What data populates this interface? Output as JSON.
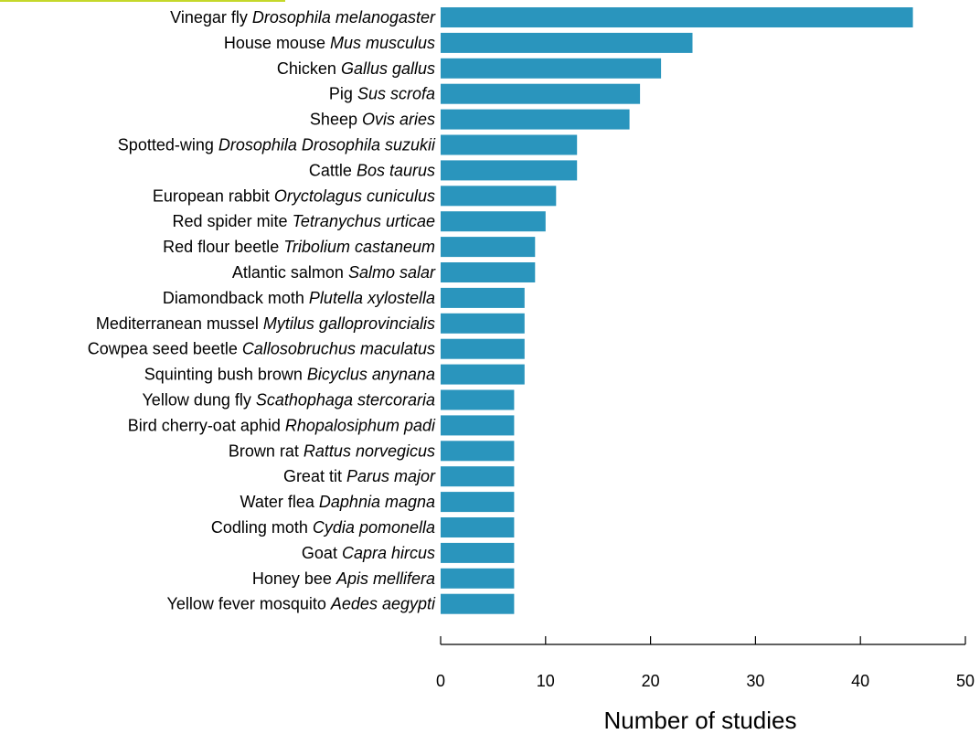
{
  "chart_data": {
    "type": "bar",
    "orientation": "horizontal",
    "categories": [
      {
        "common": "Vinegar fly",
        "common_italic": "",
        "species": "Drosophila melanogaster"
      },
      {
        "common": "House mouse",
        "common_italic": "",
        "species": "Mus musculus"
      },
      {
        "common": "Chicken",
        "common_italic": "",
        "species": "Gallus gallus"
      },
      {
        "common": "Pig",
        "common_italic": "",
        "species": "Sus scrofa"
      },
      {
        "common": "Sheep",
        "common_italic": "",
        "species": "Ovis aries"
      },
      {
        "common": "Spotted-wing",
        "common_italic": "Drosophila",
        "species": "Drosophila suzukii"
      },
      {
        "common": "Cattle",
        "common_italic": "",
        "species": "Bos taurus"
      },
      {
        "common": "European rabbit",
        "common_italic": "",
        "species": "Oryctolagus cuniculus"
      },
      {
        "common": "Red spider mite",
        "common_italic": "",
        "species": "Tetranychus urticae"
      },
      {
        "common": "Red flour beetle",
        "common_italic": "",
        "species": "Tribolium castaneum"
      },
      {
        "common": "Atlantic salmon",
        "common_italic": "",
        "species": "Salmo salar"
      },
      {
        "common": "Diamondback moth",
        "common_italic": "",
        "species": "Plutella xylostella"
      },
      {
        "common": "Mediterranean mussel",
        "common_italic": "",
        "species": "Mytilus galloprovincialis"
      },
      {
        "common": "Cowpea seed beetle",
        "common_italic": "",
        "species": "Callosobruchus maculatus"
      },
      {
        "common": "Squinting bush brown",
        "common_italic": "",
        "species": "Bicyclus anynana"
      },
      {
        "common": "Yellow dung fly",
        "common_italic": "",
        "species": "Scathophaga stercoraria"
      },
      {
        "common": "Bird cherry-oat aphid",
        "common_italic": "",
        "species": "Rhopalosiphum padi"
      },
      {
        "common": "Brown rat",
        "common_italic": "",
        "species": "Rattus norvegicus"
      },
      {
        "common": "Great tit",
        "common_italic": "",
        "species": "Parus major"
      },
      {
        "common": "Water flea",
        "common_italic": "",
        "species": "Daphnia magna"
      },
      {
        "common": "Codling moth",
        "common_italic": "",
        "species": "Cydia pomonella"
      },
      {
        "common": "Goat",
        "common_italic": "",
        "species": "Capra hircus"
      },
      {
        "common": "Honey bee",
        "common_italic": "",
        "species": "Apis mellifera"
      },
      {
        "common": "Yellow fever mosquito",
        "common_italic": "",
        "species": "Aedes aegypti"
      }
    ],
    "values": [
      45,
      24,
      21,
      19,
      18,
      13,
      13,
      11,
      10,
      9,
      9,
      8,
      8,
      8,
      8,
      7,
      7,
      7,
      7,
      7,
      7,
      7,
      7,
      7
    ],
    "xlabel": "Number of studies",
    "ylabel": "",
    "xlim": [
      0,
      50
    ],
    "xticks": [
      0,
      10,
      20,
      30,
      40,
      50
    ],
    "grid": false,
    "legend": "none",
    "colors": {
      "bar": "#2a95bd",
      "accent_rule": "#c5d82a"
    }
  }
}
